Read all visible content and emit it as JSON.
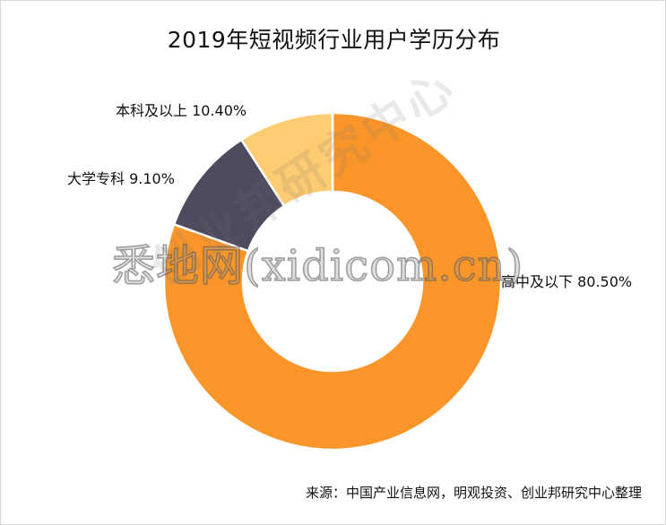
{
  "chart_data": {
    "type": "pie",
    "title": "2019年短视频行业用户学历分布",
    "categories": [
      "高中及以下",
      "本科及以上",
      "大学专科"
    ],
    "values": [
      80.5,
      10.4,
      9.1
    ],
    "labels": [
      "高中及以下 80.50%",
      "本科及以上 10.40%",
      "大学专科 9.10%"
    ],
    "colors": [
      "#FA9629",
      "#4D4B5E",
      "#FECC72"
    ],
    "start_angle_deg": 0,
    "direction": "clockwise",
    "legend": "none"
  },
  "source": "来源：中国产业信息网，明观投资、创业邦研究中心整理",
  "watermarks": {
    "main": "悉地网(xidicom.cn)",
    "diagonal": "创业邦研究中心"
  }
}
